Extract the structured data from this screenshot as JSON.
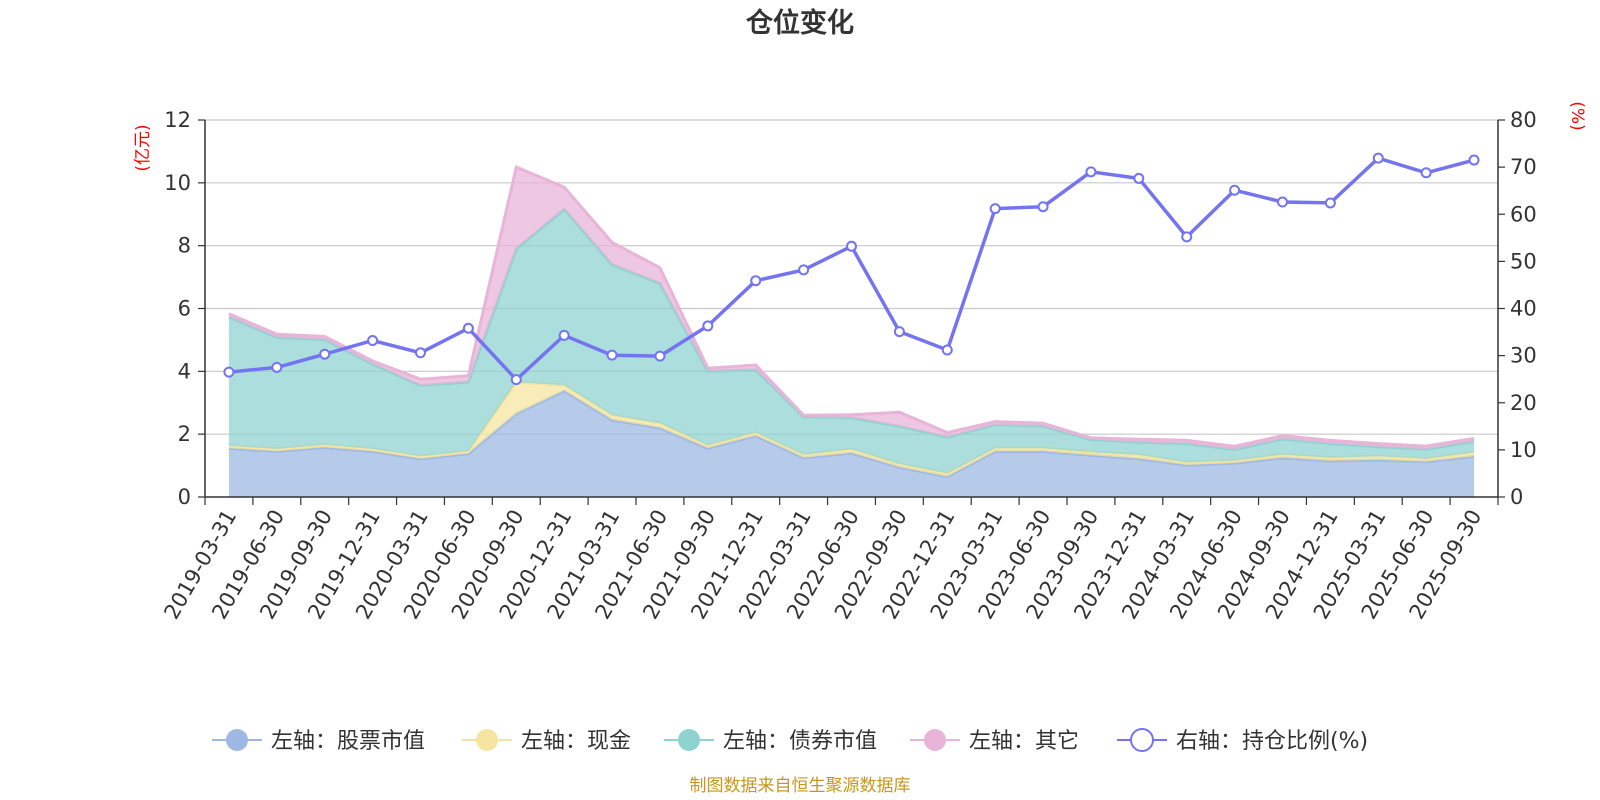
{
  "chart_data": {
    "type": "area",
    "title": "仓位变化",
    "left_axis_unit": "(亿元)",
    "right_axis_unit": "(%)",
    "ylim_left": [
      0,
      12
    ],
    "yticks_left": [
      0,
      2,
      4,
      6,
      8,
      10,
      12
    ],
    "ylim_right": [
      0,
      80
    ],
    "yticks_right": [
      0,
      10,
      20,
      30,
      40,
      50,
      60,
      70,
      80
    ],
    "categories": [
      "2019-03-31",
      "2019-06-30",
      "2019-09-30",
      "2019-12-31",
      "2020-03-31",
      "2020-06-30",
      "2020-09-30",
      "2020-12-31",
      "2021-03-31",
      "2021-06-30",
      "2021-09-30",
      "2021-12-31",
      "2022-03-31",
      "2022-06-30",
      "2022-09-30",
      "2022-12-31",
      "2023-03-31",
      "2023-06-30",
      "2023-09-30",
      "2023-12-31",
      "2024-03-31",
      "2024-06-30",
      "2024-09-30",
      "2024-12-31",
      "2025-03-31",
      "2025-06-30",
      "2025-09-30"
    ],
    "series": [
      {
        "name": "左轴：股票市值",
        "axis": "left",
        "color": "#9db8e3",
        "values": [
          1.55,
          1.45,
          1.58,
          1.45,
          1.22,
          1.38,
          2.65,
          3.38,
          2.45,
          2.2,
          1.55,
          1.95,
          1.25,
          1.4,
          0.95,
          0.65,
          1.45,
          1.45,
          1.33,
          1.22,
          1.02,
          1.08,
          1.25,
          1.15,
          1.18,
          1.12,
          1.3
        ]
      },
      {
        "name": "左轴：现金",
        "axis": "left",
        "color": "#f5e5a0",
        "values": [
          0.08,
          0.08,
          0.08,
          0.08,
          0.08,
          0.08,
          1.0,
          0.18,
          0.15,
          0.15,
          0.1,
          0.1,
          0.1,
          0.12,
          0.1,
          0.1,
          0.1,
          0.1,
          0.1,
          0.12,
          0.08,
          0.08,
          0.1,
          0.1,
          0.12,
          0.1,
          0.12
        ]
      },
      {
        "name": "左轴：债券市值",
        "axis": "left",
        "color": "#8fd3d1",
        "values": [
          4.1,
          3.55,
          3.35,
          2.7,
          2.25,
          2.2,
          4.25,
          5.6,
          4.8,
          4.45,
          2.35,
          2.0,
          1.2,
          1.0,
          1.2,
          1.15,
          0.75,
          0.7,
          0.4,
          0.4,
          0.6,
          0.35,
          0.5,
          0.45,
          0.3,
          0.3,
          0.35
        ]
      },
      {
        "name": "左轴：其它",
        "axis": "left",
        "color": "#e8b4d8",
        "values": [
          0.1,
          0.1,
          0.1,
          0.1,
          0.2,
          0.2,
          2.6,
          0.7,
          0.7,
          0.5,
          0.1,
          0.15,
          0.05,
          0.1,
          0.45,
          0.15,
          0.1,
          0.1,
          0.05,
          0.1,
          0.1,
          0.1,
          0.1,
          0.1,
          0.1,
          0.1,
          0.1
        ]
      },
      {
        "name": "右轴：持仓比例(%)",
        "axis": "right",
        "color": "#7474f0",
        "values": [
          26.5,
          27.5,
          30.3,
          33.2,
          30.6,
          35.8,
          24.9,
          34.3,
          30.1,
          29.9,
          36.3,
          45.9,
          48.2,
          53.2,
          35.1,
          31.2,
          61.2,
          61.6,
          69.0,
          67.6,
          55.2,
          65.1,
          62.6,
          62.4,
          71.9,
          68.8,
          71.5
        ]
      }
    ]
  },
  "legend": [
    {
      "label": "左轴：股票市值",
      "icon": "circle-filled",
      "color": "#9db8e3"
    },
    {
      "label": "左轴：现金",
      "icon": "circle-filled",
      "color": "#f5e5a0"
    },
    {
      "label": "左轴：债券市值",
      "icon": "circle-filled",
      "color": "#8fd3d1"
    },
    {
      "label": "左轴：其它",
      "icon": "circle-filled",
      "color": "#e8b4d8"
    },
    {
      "label": "右轴：持仓比例(%)",
      "icon": "circle-hollow",
      "color": "#7474f0"
    }
  ],
  "source_note": "制图数据来自恒生聚源数据库"
}
